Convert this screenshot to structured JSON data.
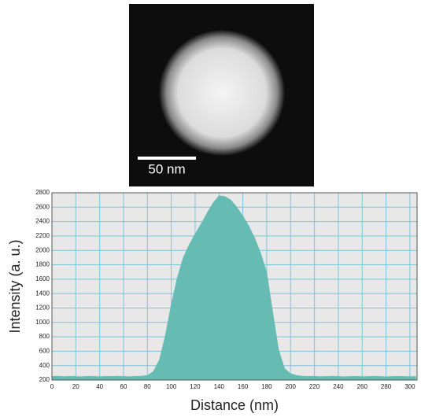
{
  "image": {
    "scale_bar": "50 nm"
  },
  "chart_data": {
    "type": "area",
    "xlabel": "Distance (nm)",
    "ylabel": "Intensity (a. u.)",
    "x": [
      0,
      5,
      10,
      15,
      20,
      25,
      30,
      35,
      40,
      45,
      50,
      55,
      60,
      65,
      70,
      75,
      80,
      85,
      90,
      95,
      100,
      105,
      110,
      115,
      120,
      125,
      130,
      135,
      140,
      145,
      150,
      155,
      160,
      165,
      170,
      175,
      180,
      185,
      190,
      195,
      200,
      205,
      210,
      215,
      220,
      225,
      230,
      235,
      240,
      245,
      250,
      255,
      260,
      265,
      270,
      275,
      280,
      285,
      290,
      295,
      300,
      305
    ],
    "values": [
      250,
      255,
      248,
      252,
      250,
      247,
      253,
      250,
      248,
      252,
      250,
      255,
      250,
      248,
      252,
      255,
      265,
      320,
      480,
      820,
      1250,
      1620,
      1900,
      2080,
      2230,
      2370,
      2520,
      2660,
      2760,
      2750,
      2700,
      2600,
      2480,
      2340,
      2170,
      1960,
      1700,
      1150,
      620,
      360,
      290,
      265,
      255,
      250,
      252,
      248,
      250,
      253,
      250,
      247,
      250,
      252,
      248,
      250,
      253,
      250,
      247,
      250,
      252,
      250,
      248,
      250
    ],
    "color": "#66bbb3",
    "xlim": [
      0,
      306
    ],
    "ylim": [
      200,
      2800
    ],
    "xticks": [
      0,
      20,
      40,
      60,
      80,
      100,
      120,
      140,
      160,
      180,
      200,
      220,
      240,
      260,
      280,
      300
    ],
    "yticks": [
      200,
      400,
      600,
      800,
      1000,
      1200,
      1400,
      1600,
      1800,
      2000,
      2200,
      2400,
      2600,
      2800
    ],
    "grid": true
  }
}
